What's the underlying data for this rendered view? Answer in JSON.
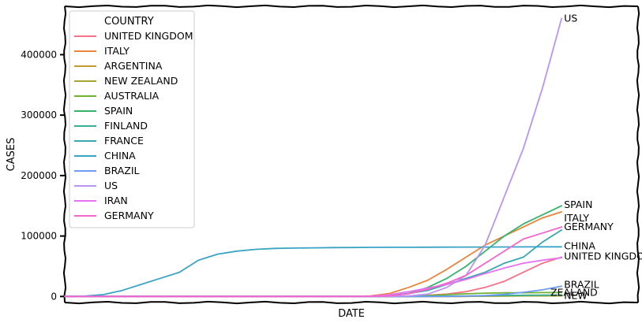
{
  "chart_data": {
    "type": "line",
    "title": "",
    "xlabel": "DATE",
    "ylabel": "CASES",
    "ylim": [
      -10000,
      480000
    ],
    "yticks": [
      0,
      100000,
      200000,
      300000,
      400000
    ],
    "ytick_labels": [
      "0",
      "100000",
      "200000",
      "300000",
      "400000"
    ],
    "grid": false,
    "legend": {
      "title": "COUNTRY",
      "placement": "top-left"
    },
    "x": [
      0,
      3,
      6,
      9,
      12,
      15,
      18,
      21,
      24,
      27,
      30,
      33,
      36,
      39,
      42,
      45,
      48,
      51,
      54,
      57,
      60,
      63,
      66,
      69,
      72,
      75,
      78
    ],
    "series": [
      {
        "name": "UNITED KINGDOM",
        "color": "#f77189",
        "end_label": "UNITED KINGDOM",
        "values": [
          0,
          0,
          0,
          0,
          0,
          0,
          0,
          0,
          0,
          0,
          0,
          0,
          0,
          0,
          0,
          0,
          0,
          100,
          1000,
          2000,
          4000,
          8000,
          15000,
          25000,
          40000,
          55000,
          65000
        ]
      },
      {
        "name": "ITALY",
        "color": "#e8853a",
        "end_label": "ITALY",
        "values": [
          0,
          0,
          0,
          0,
          0,
          0,
          0,
          0,
          0,
          0,
          0,
          0,
          0,
          0,
          3,
          150,
          1000,
          5000,
          15000,
          27000,
          45000,
          65000,
          85000,
          100000,
          115000,
          130000,
          140000
        ]
      },
      {
        "name": "ARGENTINA",
        "color": "#c39a32",
        "end_label": "",
        "values": [
          0,
          0,
          0,
          0,
          0,
          0,
          0,
          0,
          0,
          0,
          0,
          0,
          0,
          0,
          0,
          0,
          0,
          0,
          0,
          0,
          50,
          200,
          600,
          1000,
          1400,
          1600,
          1800
        ]
      },
      {
        "name": "NEW ZEALAND",
        "color": "#a7a531",
        "end_label": "NEW",
        "values": [
          0,
          0,
          0,
          0,
          0,
          0,
          0,
          0,
          0,
          0,
          0,
          0,
          0,
          0,
          0,
          0,
          0,
          0,
          0,
          0,
          50,
          150,
          400,
          700,
          900,
          1000,
          1100
        ]
      },
      {
        "name": "AUSTRALIA",
        "color": "#6fb131",
        "end_label": "ZEALAND",
        "values": [
          0,
          0,
          0,
          0,
          0,
          0,
          0,
          0,
          0,
          0,
          0,
          0,
          0,
          0,
          5,
          20,
          50,
          150,
          500,
          1500,
          3000,
          4500,
          5500,
          6000,
          6200,
          6400,
          6500
        ]
      },
      {
        "name": "SPAIN",
        "color": "#34b36c",
        "end_label": "SPAIN",
        "values": [
          0,
          0,
          0,
          0,
          0,
          0,
          0,
          0,
          0,
          0,
          0,
          0,
          0,
          0,
          0,
          0,
          100,
          1000,
          5000,
          15000,
          30000,
          50000,
          75000,
          100000,
          120000,
          135000,
          150000
        ]
      },
      {
        "name": "FINLAND",
        "color": "#36ad95",
        "end_label": "",
        "values": [
          0,
          0,
          0,
          0,
          0,
          0,
          0,
          0,
          0,
          0,
          0,
          0,
          0,
          0,
          0,
          0,
          0,
          10,
          100,
          300,
          600,
          900,
          1300,
          1700,
          2000,
          2200,
          2400
        ]
      },
      {
        "name": "FRANCE",
        "color": "#39a7b0",
        "end_label": "",
        "values": [
          0,
          0,
          0,
          0,
          0,
          0,
          0,
          0,
          0,
          0,
          0,
          0,
          0,
          0,
          10,
          50,
          200,
          1500,
          5000,
          10000,
          20000,
          30000,
          40000,
          55000,
          65000,
          90000,
          110000
        ]
      },
      {
        "name": "CHINA",
        "color": "#3ba3c4",
        "end_label": "CHINA",
        "values": [
          0,
          500,
          3000,
          10000,
          20000,
          30000,
          40000,
          60000,
          70000,
          75000,
          78000,
          79500,
          80000,
          80500,
          80800,
          81000,
          81200,
          81300,
          81400,
          81500,
          81600,
          81700,
          81800,
          81900,
          82000,
          82100,
          82200
        ]
      },
      {
        "name": "BRAZIL",
        "color": "#6e9bf4",
        "end_label": "BRAZIL",
        "values": [
          0,
          0,
          0,
          0,
          0,
          0,
          0,
          0,
          0,
          0,
          0,
          0,
          0,
          0,
          0,
          0,
          0,
          0,
          0,
          50,
          200,
          600,
          1500,
          3500,
          7000,
          11000,
          17000
        ]
      },
      {
        "name": "US",
        "color": "#b994f4",
        "end_label": "US",
        "values": [
          0,
          0,
          0,
          0,
          0,
          0,
          0,
          0,
          0,
          0,
          0,
          0,
          0,
          10,
          15,
          30,
          60,
          200,
          1000,
          4000,
          15000,
          35000,
          85000,
          165000,
          245000,
          345000,
          460000
        ]
      },
      {
        "name": "IRAN",
        "color": "#e771f2",
        "end_label": "",
        "values": [
          0,
          0,
          0,
          0,
          0,
          0,
          0,
          0,
          0,
          0,
          0,
          0,
          0,
          0,
          0,
          50,
          500,
          3000,
          8000,
          14000,
          20000,
          28000,
          38000,
          47000,
          55000,
          60000,
          64000
        ]
      },
      {
        "name": "GERMANY",
        "color": "#f565cc",
        "end_label": "GERMANY",
        "values": [
          0,
          0,
          0,
          0,
          0,
          0,
          0,
          0,
          0,
          0,
          0,
          0,
          0,
          0,
          15,
          20,
          150,
          1000,
          4500,
          12000,
          22000,
          35000,
          55000,
          75000,
          95000,
          105000,
          115000
        ]
      }
    ]
  }
}
